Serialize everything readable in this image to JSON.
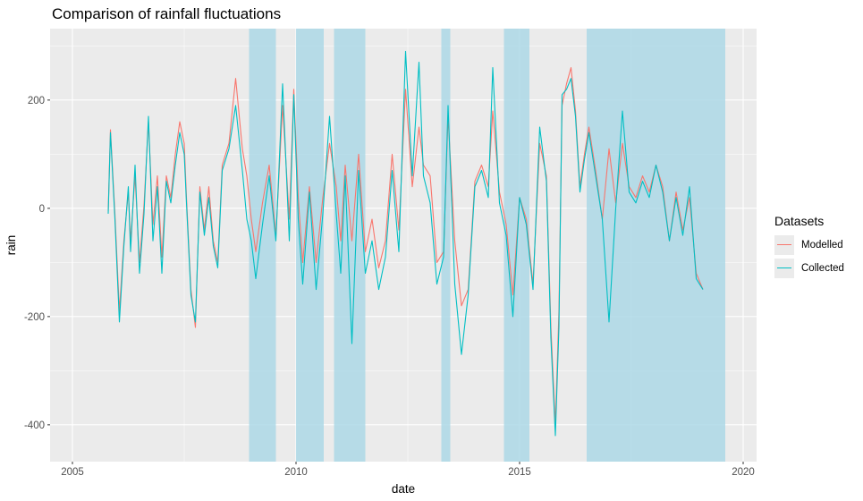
{
  "chart_data": {
    "type": "line",
    "title": "Comparison of rainfall fluctuations",
    "xlabel": "date",
    "ylabel": "rain",
    "xlim": [
      2004.5,
      2020.3
    ],
    "ylim": [
      -468,
      332
    ],
    "x_ticks": [
      2005,
      2010,
      2015,
      2020
    ],
    "y_ticks": [
      -400,
      -200,
      0,
      200
    ],
    "x_tick_labels": [
      "2005",
      "2010",
      "2015",
      "2020"
    ],
    "y_tick_labels": [
      "-400",
      "-200",
      "0",
      "200"
    ],
    "grid": true,
    "legend_position": "right",
    "legend_title": "Datasets",
    "highlight_color": "#add8e6",
    "shaded_periods": [
      [
        2008.95,
        2009.55
      ],
      [
        2010.0,
        2010.62
      ],
      [
        2010.85,
        2011.55
      ],
      [
        2013.25,
        2013.45
      ],
      [
        2014.65,
        2015.22
      ],
      [
        2016.5,
        2019.6
      ]
    ],
    "series": [
      {
        "name": "Modelled",
        "color": "#f8766d",
        "x": [
          2005.8,
          2005.85,
          2005.95,
          2006.05,
          2006.15,
          2006.25,
          2006.3,
          2006.4,
          2006.5,
          2006.6,
          2006.7,
          2006.8,
          2006.9,
          2007.0,
          2007.1,
          2007.2,
          2007.3,
          2007.4,
          2007.5,
          2007.55,
          2007.65,
          2007.75,
          2007.85,
          2007.95,
          2008.05,
          2008.15,
          2008.25,
          2008.35,
          2008.5,
          2008.65,
          2008.8,
          2008.9,
          2009.0,
          2009.1,
          2009.25,
          2009.4,
          2009.55,
          2009.7,
          2009.85,
          2009.95,
          2010.05,
          2010.15,
          2010.3,
          2010.45,
          2010.6,
          2010.75,
          2010.9,
          2011.0,
          2011.1,
          2011.25,
          2011.4,
          2011.55,
          2011.7,
          2011.85,
          2012.0,
          2012.15,
          2012.3,
          2012.45,
          2012.6,
          2012.75,
          2012.85,
          2013.0,
          2013.15,
          2013.3,
          2013.4,
          2013.55,
          2013.7,
          2013.85,
          2014.0,
          2014.15,
          2014.3,
          2014.4,
          2014.55,
          2014.7,
          2014.85,
          2015.0,
          2015.15,
          2015.3,
          2015.45,
          2015.6,
          2015.7,
          2015.8,
          2015.88,
          2015.95,
          2016.05,
          2016.15,
          2016.25,
          2016.35,
          2016.45,
          2016.55,
          2016.7,
          2016.85,
          2017.0,
          2017.15,
          2017.3,
          2017.45,
          2017.6,
          2017.75,
          2017.9,
          2018.05,
          2018.2,
          2018.35,
          2018.5,
          2018.65,
          2018.8,
          2018.95,
          2019.1
        ],
        "values": [
          -5,
          145,
          -10,
          -190,
          -60,
          30,
          -60,
          60,
          -100,
          5,
          160,
          -30,
          60,
          -90,
          60,
          20,
          100,
          160,
          120,
          20,
          -150,
          -220,
          40,
          -40,
          40,
          -60,
          -100,
          80,
          120,
          240,
          110,
          60,
          -20,
          -80,
          10,
          80,
          -50,
          190,
          -20,
          220,
          20,
          -100,
          40,
          -100,
          20,
          120,
          40,
          -60,
          80,
          -60,
          100,
          -80,
          -20,
          -110,
          -60,
          100,
          -40,
          220,
          40,
          150,
          80,
          60,
          -100,
          -80,
          170,
          -60,
          -180,
          -150,
          50,
          80,
          40,
          180,
          30,
          -30,
          -160,
          20,
          -20,
          -140,
          120,
          60,
          -220,
          -400,
          -190,
          190,
          230,
          260,
          180,
          40,
          100,
          150,
          70,
          -20,
          110,
          10,
          120,
          40,
          20,
          60,
          30,
          80,
          40,
          -60,
          30,
          -40,
          20,
          -120,
          -150
        ]
      },
      {
        "name": "Collected",
        "color": "#00bfc4",
        "x": [
          2005.8,
          2005.85,
          2005.95,
          2006.05,
          2006.15,
          2006.25,
          2006.3,
          2006.4,
          2006.5,
          2006.6,
          2006.7,
          2006.8,
          2006.9,
          2007.0,
          2007.1,
          2007.2,
          2007.3,
          2007.4,
          2007.5,
          2007.55,
          2007.65,
          2007.75,
          2007.85,
          2007.95,
          2008.05,
          2008.15,
          2008.25,
          2008.35,
          2008.5,
          2008.65,
          2008.8,
          2008.9,
          2009.0,
          2009.1,
          2009.25,
          2009.4,
          2009.55,
          2009.7,
          2009.85,
          2009.95,
          2010.05,
          2010.15,
          2010.3,
          2010.45,
          2010.6,
          2010.75,
          2010.9,
          2011.0,
          2011.1,
          2011.25,
          2011.4,
          2011.55,
          2011.7,
          2011.85,
          2012.0,
          2012.15,
          2012.3,
          2012.45,
          2012.6,
          2012.75,
          2012.85,
          2013.0,
          2013.15,
          2013.3,
          2013.4,
          2013.55,
          2013.7,
          2013.85,
          2014.0,
          2014.15,
          2014.3,
          2014.4,
          2014.55,
          2014.7,
          2014.85,
          2015.0,
          2015.15,
          2015.3,
          2015.45,
          2015.6,
          2015.7,
          2015.8,
          2015.88,
          2015.95,
          2016.05,
          2016.15,
          2016.25,
          2016.35,
          2016.45,
          2016.55,
          2016.7,
          2016.85,
          2017.0,
          2017.15,
          2017.3,
          2017.45,
          2017.6,
          2017.75,
          2017.9,
          2018.05,
          2018.2,
          2018.35,
          2018.5,
          2018.65,
          2018.8,
          2018.95,
          2019.1
        ],
        "values": [
          -10,
          140,
          -20,
          -210,
          -70,
          40,
          -80,
          80,
          -120,
          -10,
          170,
          -60,
          40,
          -120,
          50,
          10,
          80,
          140,
          100,
          10,
          -160,
          -210,
          30,
          -50,
          20,
          -70,
          -110,
          70,
          110,
          190,
          70,
          -20,
          -60,
          -130,
          -30,
          60,
          -60,
          230,
          -60,
          210,
          -20,
          -140,
          30,
          -150,
          -10,
          170,
          -10,
          -120,
          60,
          -250,
          70,
          -120,
          -60,
          -150,
          -90,
          70,
          -80,
          290,
          60,
          270,
          60,
          10,
          -140,
          -90,
          190,
          -140,
          -270,
          -160,
          40,
          70,
          20,
          260,
          10,
          -50,
          -200,
          20,
          -30,
          -150,
          150,
          50,
          -240,
          -420,
          -220,
          210,
          220,
          240,
          170,
          30,
          90,
          140,
          60,
          -20,
          -210,
          0,
          180,
          30,
          10,
          50,
          20,
          80,
          30,
          -60,
          20,
          -50,
          40,
          -130,
          -150
        ]
      }
    ]
  }
}
